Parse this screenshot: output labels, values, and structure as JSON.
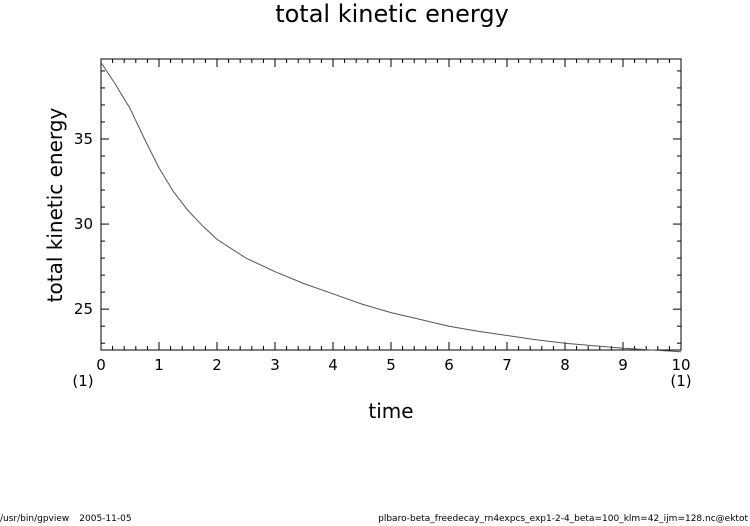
{
  "chart_data": {
    "type": "line",
    "title": "total kinetic energy",
    "xlabel": "time",
    "ylabel": "total kinetic energy",
    "xlim": [
      0,
      10
    ],
    "ylim": [
      22.6,
      39.7
    ],
    "x_ticks": [
      0,
      1,
      2,
      3,
      4,
      5,
      6,
      7,
      8,
      9,
      10
    ],
    "y_ticks": [
      25,
      30,
      35
    ],
    "x_unit_left": "(1)",
    "x_unit_right": "(1)",
    "grid": false,
    "series": [
      {
        "color": "#555555",
        "x": [
          0,
          0.25,
          0.5,
          0.75,
          1,
          1.25,
          1.5,
          1.75,
          2,
          2.5,
          3,
          3.5,
          4,
          4.5,
          5,
          5.5,
          6,
          6.5,
          7,
          7.5,
          8,
          8.5,
          9,
          9.5,
          10
        ],
        "y": [
          39.5,
          38.2,
          36.8,
          35.0,
          33.3,
          31.9,
          30.8,
          29.9,
          29.1,
          28.0,
          27.2,
          26.5,
          25.9,
          25.3,
          24.8,
          24.4,
          24.0,
          23.7,
          23.45,
          23.2,
          23.0,
          22.85,
          22.7,
          22.6,
          22.5
        ]
      }
    ]
  },
  "footer": {
    "program": "/usr/bin/gpview",
    "date": "2005-11-05",
    "file": "plbaro-beta_freedecay_rn4expcs_exp1-2-4_beta=100_klm=42_ijm=128.nc@ektot"
  }
}
